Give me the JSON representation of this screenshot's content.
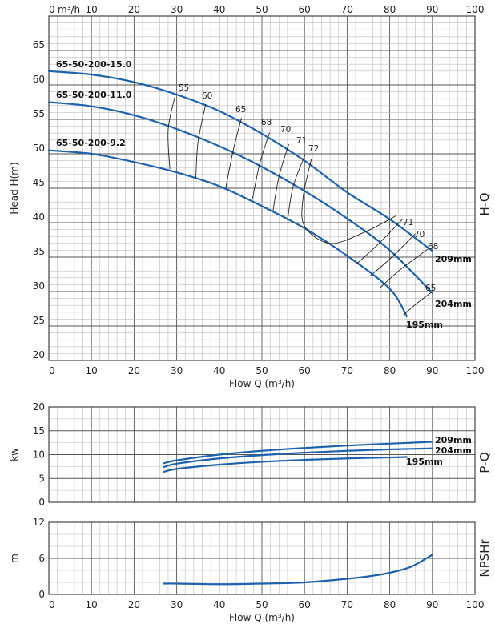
{
  "chart_data": [
    {
      "id": "hq",
      "type": "line",
      "side_label": "H-Q",
      "xlabel": "Flow Q (m³/h)",
      "ylabel": "Head H(m)",
      "top_axis_label": "m³/h",
      "xlim": [
        0,
        100
      ],
      "ylim": [
        20,
        70
      ],
      "xticks": [
        0,
        10,
        20,
        30,
        40,
        50,
        60,
        70,
        80,
        90,
        100
      ],
      "yticks": [
        20,
        25,
        30,
        35,
        40,
        45,
        50,
        55,
        60,
        65
      ],
      "series": [
        {
          "name": "65-50-200-15.0",
          "end_label": "209mm",
          "x": [
            0,
            10,
            20,
            30,
            40,
            50,
            60,
            70,
            80,
            90
          ],
          "y": [
            62,
            61.5,
            60.4,
            58.6,
            56.2,
            52.9,
            49.0,
            44.4,
            40.5,
            35.9
          ]
        },
        {
          "name": "65-50-200-11.0",
          "end_label": "204mm",
          "x": [
            0,
            10,
            20,
            30,
            40,
            50,
            60,
            70,
            80,
            90
          ],
          "y": [
            57.5,
            56.9,
            55.6,
            53.6,
            51.1,
            48.1,
            44.6,
            40.6,
            36.0,
            29.8
          ]
        },
        {
          "name": "65-50-200-9.2",
          "end_label": "195mm",
          "x": [
            0,
            10,
            20,
            30,
            40,
            50,
            60,
            70,
            80,
            84
          ],
          "y": [
            50.5,
            50.0,
            48.8,
            47.3,
            45.3,
            42.4,
            39.2,
            35.2,
            30.4,
            26.4
          ]
        }
      ],
      "efficiency_labels": [
        "55",
        "60",
        "65",
        "68",
        "70",
        "71",
        "72",
        "71",
        "70",
        "68",
        "65"
      ]
    },
    {
      "id": "pq",
      "type": "line",
      "side_label": "P-Q",
      "ylabel": "kw",
      "xlim": [
        0,
        100
      ],
      "ylim": [
        0,
        20
      ],
      "yticks": [
        0,
        5,
        10,
        15,
        20
      ],
      "series": [
        {
          "label": "209mm",
          "x": [
            27,
            30,
            40,
            50,
            60,
            70,
            80,
            90
          ],
          "y": [
            8.2,
            8.8,
            10.0,
            10.8,
            11.4,
            11.9,
            12.3,
            12.7
          ]
        },
        {
          "label": "204mm",
          "x": [
            27,
            30,
            40,
            50,
            60,
            70,
            80,
            90
          ],
          "y": [
            7.4,
            8.1,
            9.2,
            9.9,
            10.4,
            10.8,
            11.1,
            11.3
          ]
        },
        {
          "label": "195mm",
          "x": [
            27,
            30,
            40,
            50,
            60,
            70,
            80,
            84
          ],
          "y": [
            6.4,
            7.0,
            7.9,
            8.5,
            8.9,
            9.2,
            9.4,
            9.5
          ]
        }
      ]
    },
    {
      "id": "npsh",
      "type": "line",
      "side_label": "NPSHr",
      "ylabel": "m",
      "xlabel": "Flow Q (m³/h)",
      "xlim": [
        0,
        100
      ],
      "ylim": [
        0,
        12
      ],
      "yticks": [
        0,
        6,
        12
      ],
      "xticks": [
        0,
        10,
        20,
        30,
        40,
        50,
        60,
        70,
        80,
        90,
        100
      ],
      "series": [
        {
          "x": [
            27,
            30,
            40,
            50,
            60,
            70,
            75,
            80,
            85,
            90
          ],
          "y": [
            1.8,
            1.8,
            1.7,
            1.8,
            2.0,
            2.6,
            3.0,
            3.6,
            4.6,
            6.6
          ]
        }
      ]
    }
  ]
}
